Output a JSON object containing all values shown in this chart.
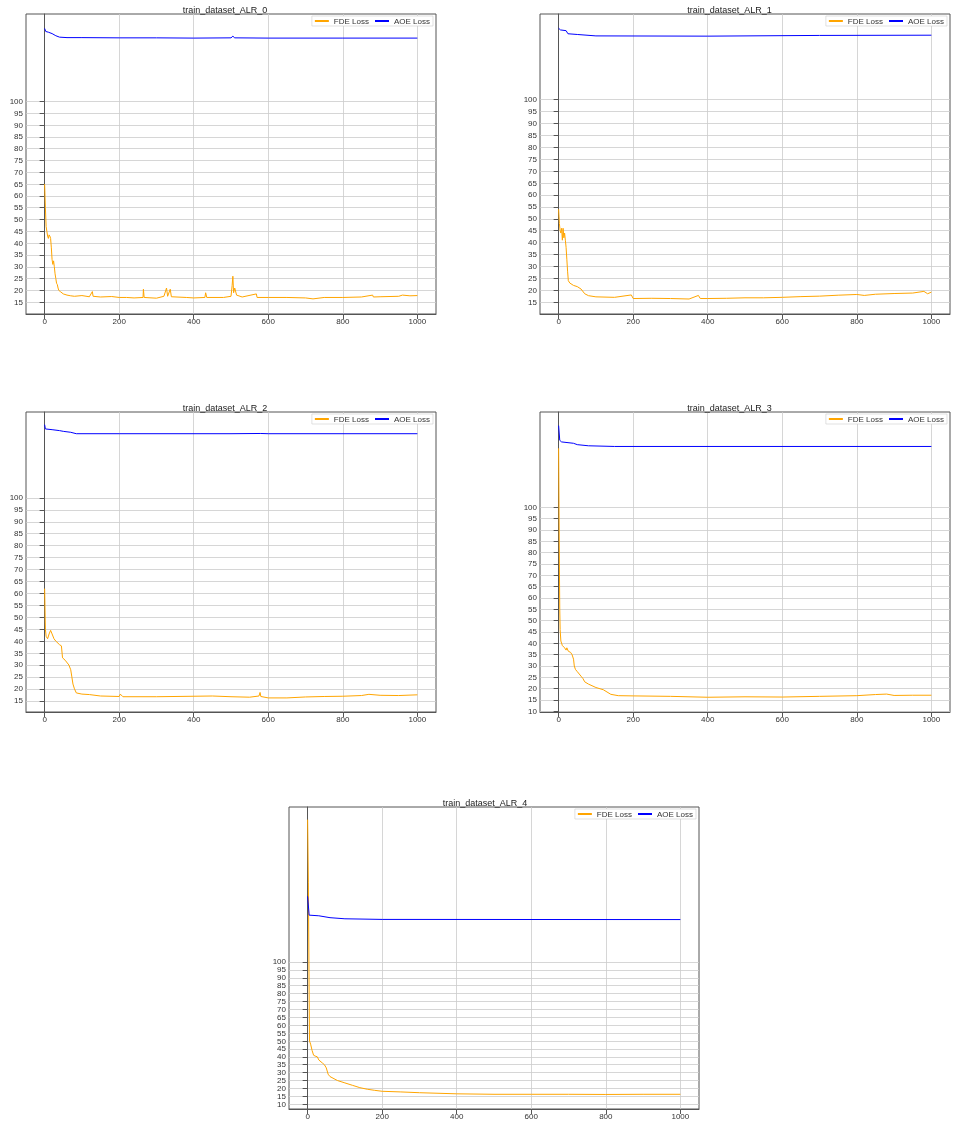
{
  "chart_data": [
    {
      "type": "line",
      "title": "train_dataset_ALR_0",
      "xlim": [
        -50,
        1050
      ],
      "xticks": [
        0,
        200,
        400,
        600,
        800,
        1000
      ],
      "ylim": [
        10,
        137
      ],
      "yticks": [
        15,
        20,
        25,
        30,
        35,
        40,
        45,
        50,
        55,
        60,
        65,
        70,
        75,
        80,
        85,
        90,
        95,
        100
      ],
      "grid": true,
      "legend": "top right",
      "marker": "none",
      "series": [
        {
          "name": "FDE Loss",
          "color": "#ffa500",
          "x": [
            0,
            2,
            4,
            6,
            8,
            10,
            12,
            14,
            16,
            18,
            20,
            22,
            24,
            26,
            28,
            30,
            32,
            34,
            36,
            38,
            42,
            50,
            60,
            70,
            80,
            100,
            120,
            128,
            130,
            150,
            180,
            200,
            220,
            240,
            264,
            265,
            267,
            300,
            320,
            327,
            330,
            337,
            340,
            380,
            400,
            430,
            432,
            435,
            480,
            500,
            503,
            505,
            507,
            510,
            515,
            530,
            568,
            570,
            600,
            650,
            700,
            720,
            750,
            800,
            850,
            880,
            882,
            900,
            950,
            960,
            980,
            1000
          ],
          "values": [
            65,
            55,
            47,
            45,
            43,
            42,
            43.5,
            43,
            42,
            38,
            33,
            31,
            32.5,
            30,
            27,
            25,
            23,
            22.5,
            21,
            20,
            19.5,
            18.5,
            18,
            17.7,
            17.5,
            17.8,
            17.3,
            19.5,
            17.5,
            17.2,
            17.4,
            17,
            17,
            16.8,
            17,
            20.5,
            17,
            16.7,
            17.5,
            21,
            17.5,
            20.5,
            17.3,
            17,
            16.8,
            17,
            19,
            17,
            17,
            17.5,
            22,
            26,
            19,
            21,
            18,
            17.2,
            18.5,
            17,
            17,
            17,
            16.8,
            16.4,
            17,
            17,
            17.2,
            18,
            17.2,
            17.3,
            17.5,
            18,
            17.7,
            17.8
          ]
        },
        {
          "name": "AOE Loss",
          "color": "#0000ff",
          "x": [
            0,
            3,
            10,
            20,
            30,
            40,
            60,
            100,
            200,
            300,
            400,
            500,
            505,
            510,
            600,
            800,
            1000
          ],
          "values": [
            130.9,
            129.6,
            129.3,
            128.7,
            127.8,
            127.2,
            127,
            127,
            126.9,
            126.9,
            126.8,
            126.9,
            127.6,
            126.9,
            126.8,
            126.8,
            126.8
          ]
        }
      ]
    },
    {
      "type": "line",
      "title": "train_dataset_ALR_1",
      "xlim": [
        -50,
        1050
      ],
      "xticks": [
        0,
        200,
        400,
        600,
        800,
        1000
      ],
      "ylim": [
        10,
        136
      ],
      "yticks": [
        15,
        20,
        25,
        30,
        35,
        40,
        45,
        50,
        55,
        60,
        65,
        70,
        75,
        80,
        85,
        90,
        95,
        100
      ],
      "grid": true,
      "legend": "top right",
      "marker": "none",
      "series": [
        {
          "name": "FDE Loss",
          "color": "#ffa500",
          "x": [
            0,
            2,
            4,
            6,
            8,
            10,
            12,
            14,
            16,
            18,
            20,
            22,
            24,
            26,
            30,
            40,
            50,
            60,
            70,
            80,
            100,
            150,
            195,
            200,
            250,
            300,
            350,
            375,
            380,
            400,
            450,
            500,
            550,
            600,
            650,
            700,
            750,
            800,
            820,
            850,
            900,
            950,
            980,
            990,
            1000
          ],
          "values": [
            54,
            48,
            45,
            44,
            46,
            41,
            46,
            42,
            44,
            41,
            38,
            33,
            28,
            24,
            23,
            22,
            21.5,
            20.5,
            18.5,
            17.7,
            17.2,
            17,
            18,
            16.5,
            16.6,
            16.5,
            16.3,
            17.8,
            16.5,
            16.5,
            16.6,
            16.8,
            16.8,
            17,
            17.3,
            17.5,
            17.9,
            18.2,
            17.8,
            18.3,
            18.6,
            18.8,
            19.5,
            18.5,
            19.2
          ]
        },
        {
          "name": "AOE Loss",
          "color": "#0000ff",
          "x": [
            0,
            5,
            20,
            25,
            50,
            100,
            400,
            700,
            1000
          ],
          "values": [
            130,
            129.3,
            129,
            127.7,
            127.4,
            126.8,
            126.7,
            127,
            127.1
          ]
        }
      ]
    },
    {
      "type": "line",
      "title": "train_dataset_ALR_2",
      "xlim": [
        -50,
        1050
      ],
      "xticks": [
        0,
        200,
        400,
        600,
        800,
        1000
      ],
      "ylim": [
        10.3,
        136
      ],
      "yticks": [
        15,
        20,
        25,
        30,
        35,
        40,
        45,
        50,
        55,
        60,
        65,
        70,
        75,
        80,
        85,
        90,
        95,
        100
      ],
      "grid": true,
      "legend": "top right",
      "marker": "none",
      "series": [
        {
          "name": "FDE Loss",
          "color": "#ffa500",
          "x": [
            0,
            2,
            4,
            8,
            12,
            16,
            20,
            25,
            30,
            40,
            45,
            48,
            55,
            65,
            70,
            73,
            76,
            80,
            85,
            100,
            120,
            150,
            200,
            203,
            210,
            300,
            450,
            500,
            550,
            575,
            578,
            580,
            600,
            650,
            700,
            750,
            800,
            850,
            870,
            900,
            950,
            1000
          ],
          "values": [
            62,
            45,
            42,
            41,
            43,
            44.5,
            43,
            41,
            40,
            38.5,
            38,
            33,
            32,
            30,
            28,
            25,
            22,
            20,
            18.3,
            17.8,
            17.6,
            17,
            16.8,
            17.8,
            16.7,
            16.7,
            17,
            16.7,
            16.5,
            17,
            18.5,
            16.8,
            16.2,
            16.2,
            16.6,
            16.8,
            16.9,
            17.2,
            17.7,
            17.3,
            17.2,
            17.5
          ]
        },
        {
          "name": "AOE Loss",
          "color": "#0000ff",
          "x": [
            0,
            2,
            20,
            40,
            50,
            70,
            85,
            200,
            500,
            580,
            600,
            1000
          ],
          "values": [
            130.7,
            128.9,
            128.6,
            128.2,
            127.9,
            127.5,
            126.9,
            126.9,
            126.9,
            127,
            126.9,
            126.9
          ]
        }
      ]
    },
    {
      "type": "line",
      "title": "train_dataset_ALR_3",
      "xlim": [
        -50,
        1050
      ],
      "xticks": [
        0,
        200,
        400,
        600,
        800,
        1000
      ],
      "ylim": [
        9.7,
        142
      ],
      "yticks": [
        10,
        15,
        20,
        25,
        30,
        35,
        40,
        45,
        50,
        55,
        60,
        65,
        70,
        75,
        80,
        85,
        90,
        95,
        100
      ],
      "grid": true,
      "legend": "top right",
      "marker": "none",
      "series": [
        {
          "name": "FDE Loss",
          "color": "#ffa500",
          "x": [
            0,
            1,
            2,
            3,
            4,
            6,
            10,
            16,
            20,
            22,
            26,
            32,
            36,
            40,
            42,
            45,
            50,
            60,
            65,
            70,
            80,
            100,
            120,
            140,
            160,
            200,
            300,
            400,
            500,
            600,
            700,
            800,
            850,
            880,
            900,
            950,
            1000
          ],
          "values": [
            126,
            100,
            75,
            55,
            46,
            41,
            39,
            38,
            37,
            38,
            36.5,
            36,
            35,
            33,
            30,
            28.5,
            27.5,
            25.5,
            24.5,
            23,
            22,
            20.5,
            19.5,
            17.5,
            16.9,
            16.8,
            16.6,
            16.2,
            16.4,
            16.3,
            16.6,
            16.9,
            17.4,
            17.6,
            17,
            17.1,
            17.1
          ]
        },
        {
          "name": "AOE Loss",
          "color": "#0000ff",
          "x": [
            0,
            3,
            8,
            40,
            50,
            80,
            150,
            1000
          ],
          "values": [
            136,
            129.5,
            128.8,
            128.2,
            127.6,
            127.1,
            126.8,
            126.8
          ]
        }
      ]
    },
    {
      "type": "line",
      "title": "train_dataset_ALR_4",
      "xlim": [
        -50,
        1050
      ],
      "xticks": [
        0,
        200,
        400,
        600,
        800,
        1000
      ],
      "ylim": [
        7,
        198
      ],
      "yticks": [
        10,
        15,
        20,
        25,
        30,
        35,
        40,
        45,
        50,
        55,
        60,
        65,
        70,
        75,
        80,
        85,
        90,
        95,
        100
      ],
      "grid": true,
      "legend": "top right",
      "marker": "none",
      "series": [
        {
          "name": "FDE Loss",
          "color": "#ffa500",
          "x": [
            0,
            2,
            4,
            5,
            8,
            12,
            16,
            20,
            26,
            30,
            40,
            45,
            50,
            55,
            60,
            80,
            100,
            120,
            140,
            160,
            180,
            200,
            250,
            300,
            400,
            500,
            600,
            700,
            800,
            900,
            1000
          ],
          "values": [
            190,
            150,
            80,
            50,
            48,
            44,
            41,
            40.5,
            40,
            38,
            36,
            35,
            33,
            29,
            27.5,
            25,
            23.5,
            22,
            20.5,
            19.5,
            18.8,
            18.2,
            17.8,
            17.3,
            16.6,
            16.3,
            16.3,
            16.3,
            16.2,
            16.3,
            16.3
          ]
        },
        {
          "name": "AOE Loss",
          "color": "#0000ff",
          "x": [
            0,
            4,
            30,
            60,
            100,
            200,
            1000
          ],
          "values": [
            141.5,
            129.6,
            129.2,
            128,
            127.3,
            126.9,
            126.8
          ]
        }
      ]
    }
  ]
}
